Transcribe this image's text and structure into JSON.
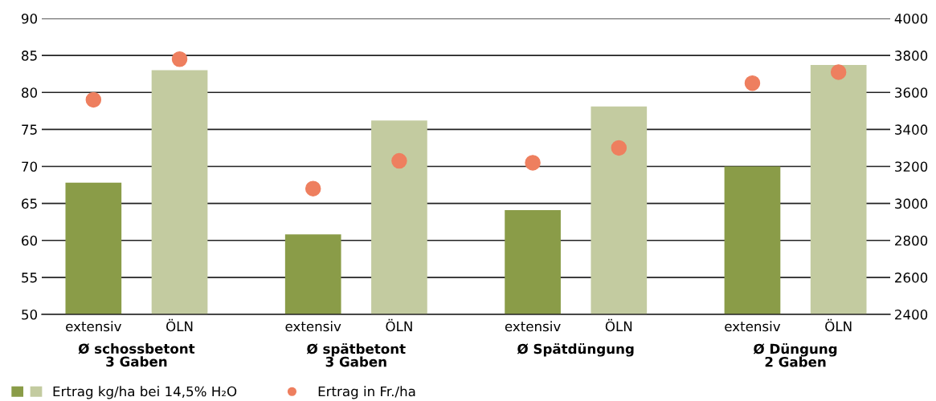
{
  "chart_data": {
    "type": "bar",
    "categories": [
      "extensiv",
      "ÖLN",
      "extensiv",
      "ÖLN",
      "extensiv",
      "ÖLN",
      "extensiv",
      "ÖLN"
    ],
    "series": [
      {
        "name": "Ertrag kg/ha bei 14,5% H₂O",
        "colors": [
          "#8a9c48",
          "#c3cba0",
          "#8a9c48",
          "#c3cba0",
          "#8a9c48",
          "#c3cba0",
          "#8a9c48",
          "#c3cba0"
        ],
        "values": [
          67.8,
          83.0,
          60.8,
          76.2,
          64.1,
          78.1,
          70.0,
          83.7
        ]
      },
      {
        "name": "Ertrag in Fr./ha",
        "type": "scatter",
        "axis": "y2",
        "color": "#ee7f5f",
        "marker": "circle",
        "values": [
          3560,
          3780,
          3080,
          3230,
          3220,
          3300,
          3650,
          3710
        ]
      }
    ],
    "annotations": [
      "Ø schossbetont\n3 Gaben",
      "Ø spätbetont\n3 Gaben",
      "Ø Spätdüngung",
      "Ø Düngung\n2 Gaben"
    ],
    "ylim": [
      50,
      90
    ],
    "yticks": [
      50,
      55,
      60,
      65,
      70,
      75,
      80,
      85,
      90
    ],
    "y2lim": [
      2400,
      4000
    ],
    "y2ticks": [
      2400,
      2600,
      2800,
      3000,
      3200,
      3400,
      3600,
      3800,
      4000
    ],
    "grid": "y",
    "legend": "bottom left"
  }
}
